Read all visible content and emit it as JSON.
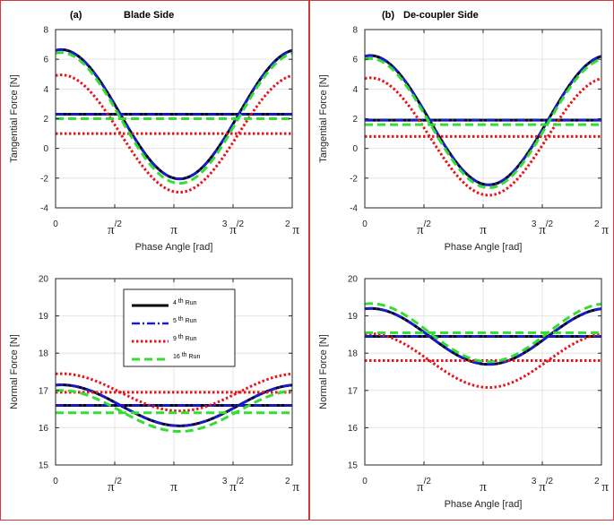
{
  "panels": [
    {
      "label": "(a)",
      "title": "Blade Side"
    },
    {
      "label": "(b)",
      "title": "De-coupler Side"
    }
  ],
  "x_ticks": [
    {
      "pre": "",
      "main": "0",
      "sup": ""
    },
    {
      "pre": "",
      "main": "π",
      "sup": "/2"
    },
    {
      "pre": "",
      "main": "π",
      "sup": ""
    },
    {
      "pre": "3",
      "main": "π",
      "sup": "/2"
    },
    {
      "pre": "2",
      "main": "π",
      "sup": ""
    }
  ],
  "legend": [
    {
      "num": "4",
      "ord": "th",
      "word": "Run"
    },
    {
      "num": "5",
      "ord": "th",
      "word": "Run"
    },
    {
      "num": "9",
      "ord": "th",
      "word": "Run"
    },
    {
      "num": "16",
      "ord": "th",
      "word": "Run"
    }
  ],
  "series_style": [
    {
      "color": "#000000",
      "dash": "",
      "width": 3
    },
    {
      "color": "#1a1adb",
      "dash": "9 3 2 3",
      "width": 2.6
    },
    {
      "color": "#e8141b",
      "dash": "2.5 2.5",
      "width": 3
    },
    {
      "color": "#33dd33",
      "dash": "9 5",
      "width": 3
    }
  ],
  "chart_data": [
    {
      "type": "line",
      "title": "Blade Side",
      "panel": "(a)",
      "xlabel": "Phase Angle [rad]",
      "ylabel": "Tangential Force [N]",
      "xlim": [
        0,
        6.2832
      ],
      "ylim": [
        -4,
        8
      ],
      "yticks": [
        -4,
        -2,
        0,
        2,
        4,
        6,
        8
      ],
      "series": [
        {
          "mean": 2.3,
          "amp": 4.35,
          "phase": 0.15,
          "constant": 2.3
        },
        {
          "mean": 2.3,
          "amp": 4.35,
          "phase": 0.15,
          "constant": 2.3
        },
        {
          "mean": 1.0,
          "amp": 3.95,
          "phase": 0.15,
          "constant": 1.0
        },
        {
          "mean": 2.05,
          "amp": 4.4,
          "phase": 0.15,
          "constant": 2.0
        }
      ]
    },
    {
      "type": "line",
      "title": "De-coupler Side",
      "panel": "(b)",
      "xlabel": "Phase Angle [rad]",
      "ylabel": "Tangential Force [N]",
      "xlim": [
        0,
        6.2832
      ],
      "ylim": [
        -4,
        8
      ],
      "yticks": [
        -4,
        -2,
        0,
        2,
        4,
        6,
        8
      ],
      "series": [
        {
          "mean": 1.9,
          "amp": 4.35,
          "phase": 0.15,
          "constant": 1.9
        },
        {
          "mean": 1.9,
          "amp": 4.35,
          "phase": 0.15,
          "constant": 1.9
        },
        {
          "mean": 0.8,
          "amp": 3.95,
          "phase": 0.15,
          "constant": 0.8
        },
        {
          "mean": 1.7,
          "amp": 4.35,
          "phase": 0.15,
          "constant": 1.6
        }
      ]
    },
    {
      "type": "line",
      "panel": "(a)",
      "xlabel": "",
      "ylabel": "Normal Force [N]",
      "xlim": [
        0,
        6.2832
      ],
      "ylim": [
        15,
        20
      ],
      "yticks": [
        15,
        16,
        17,
        18,
        19,
        20
      ],
      "series": [
        {
          "mean": 16.6,
          "amp": 0.55,
          "phase": 0.15,
          "constant": 16.6
        },
        {
          "mean": 16.6,
          "amp": 0.55,
          "phase": 0.15,
          "constant": 16.6
        },
        {
          "mean": 16.95,
          "amp": 0.5,
          "phase": 0.15,
          "constant": 16.95
        },
        {
          "mean": 16.45,
          "amp": 0.55,
          "phase": 0.15,
          "constant": 16.4
        }
      ]
    },
    {
      "type": "line",
      "panel": "(b)",
      "xlabel": "Phase Angle [rad]",
      "ylabel": "Normal Force [N]",
      "xlim": [
        0,
        6.2832
      ],
      "ylim": [
        15,
        20
      ],
      "yticks": [
        15,
        16,
        17,
        18,
        19,
        20
      ],
      "series": [
        {
          "mean": 18.45,
          "amp": 0.75,
          "phase": 0.15,
          "constant": 18.45
        },
        {
          "mean": 18.45,
          "amp": 0.75,
          "phase": 0.15,
          "constant": 18.45
        },
        {
          "mean": 17.8,
          "amp": 0.72,
          "phase": 0.15,
          "constant": 17.8
        },
        {
          "mean": 18.55,
          "amp": 0.78,
          "phase": 0.15,
          "constant": 18.55
        }
      ]
    }
  ]
}
